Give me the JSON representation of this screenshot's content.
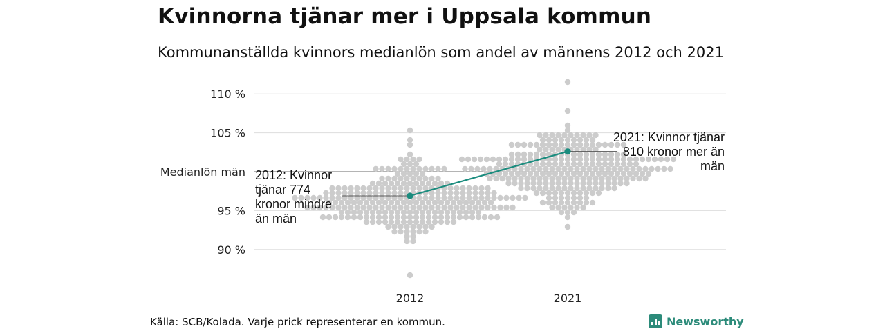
{
  "title": "Kvinnorna tjänar mer i Uppsala kommun",
  "subtitle": "Kommunanställda kvinnors medianlön som andel av männens 2012 och 2021",
  "source": "Källa: SCB/Kolada. Varje prick representerar en kommun.",
  "brand": "Newsworthy",
  "colors": {
    "dots": "#cccccc",
    "highlight": "#1a8c7e",
    "grid": "#dddddd",
    "reference": "#888888",
    "brand": "#2c8b7a"
  },
  "annotations": {
    "y2012": "2012: Kvinnor tjänar 774 kronor mindre än män",
    "y2021": "2021: Kvinnor tjänar 810 kronor mer än män"
  },
  "chart_data": {
    "type": "scatter",
    "subtype": "beeswarm",
    "title": "Kvinnorna tjänar mer i Uppsala kommun",
    "categories": [
      "2012",
      "2021"
    ],
    "yticks": [
      90,
      95,
      105,
      110
    ],
    "ytick_labels": [
      "90 %",
      "95 %",
      "105 %",
      "110 %"
    ],
    "ylim": [
      86,
      112
    ],
    "reference_line": {
      "value": 100,
      "label": "Medianlön män"
    },
    "highlight": {
      "name": "Uppsala",
      "values": [
        96.9,
        102.6
      ]
    },
    "distribution": [
      {
        "year": "2012",
        "min": 86.5,
        "max": 105.3,
        "count": 290,
        "center": 96.2,
        "spread": 2.4
      },
      {
        "year": "2021",
        "min": 92.6,
        "max": 111.3,
        "count": 290,
        "center": 100.6,
        "spread": 2.3
      }
    ]
  }
}
